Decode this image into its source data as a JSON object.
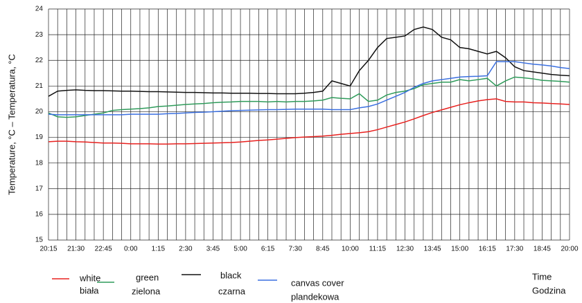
{
  "chart_data": {
    "type": "line",
    "ylabel": "Temperature, °C – Temperatura, °C",
    "xlabel": "Time",
    "xlabel_pl": "Godzina",
    "categories": [
      "20:15",
      null,
      null,
      "21:30",
      null,
      null,
      "22:45",
      null,
      null,
      "0:00",
      null,
      null,
      "1:15",
      null,
      null,
      "2:30",
      null,
      null,
      "3:45",
      null,
      null,
      "5:00",
      null,
      null,
      "6:15",
      null,
      null,
      "7:30",
      null,
      null,
      "8:45",
      null,
      null,
      "10:00",
      null,
      null,
      "11:15",
      null,
      null,
      "12:30",
      null,
      null,
      "13:45",
      null,
      null,
      "15:00",
      null,
      null,
      "16:15",
      null,
      null,
      "17:30",
      null,
      null,
      "18:45",
      null,
      null,
      "20:00"
    ],
    "ylim": [
      15,
      24
    ],
    "yticks": [
      15,
      16,
      17,
      18,
      19,
      20,
      21,
      22,
      23,
      24
    ],
    "grid": true,
    "series": [
      {
        "name": "white",
        "name_pl": "biała",
        "color": "#e8201e",
        "values": [
          18.83,
          18.85,
          18.85,
          18.83,
          18.82,
          18.8,
          18.78,
          18.78,
          18.77,
          18.75,
          18.75,
          18.75,
          18.74,
          18.74,
          18.75,
          18.75,
          18.76,
          18.77,
          18.78,
          18.79,
          18.8,
          18.82,
          18.85,
          18.88,
          18.9,
          18.93,
          18.96,
          18.99,
          19.01,
          19.03,
          19.05,
          19.08,
          19.12,
          19.15,
          19.18,
          19.22,
          19.3,
          19.4,
          19.5,
          19.6,
          19.72,
          19.85,
          19.97,
          20.07,
          20.17,
          20.27,
          20.35,
          20.42,
          20.47,
          20.5,
          20.4,
          20.38,
          20.38,
          20.35,
          20.34,
          20.32,
          20.3,
          20.28
        ]
      },
      {
        "name": "green",
        "name_pl": "zielona",
        "color": "#2e9b5a",
        "values": [
          19.95,
          19.8,
          19.78,
          19.8,
          19.85,
          19.9,
          19.95,
          20.05,
          20.08,
          20.1,
          20.12,
          20.15,
          20.2,
          20.22,
          20.25,
          20.28,
          20.3,
          20.32,
          20.35,
          20.37,
          20.38,
          20.4,
          20.4,
          20.4,
          20.38,
          20.4,
          20.38,
          20.4,
          20.4,
          20.42,
          20.45,
          20.55,
          20.52,
          20.5,
          20.7,
          20.4,
          20.45,
          20.65,
          20.75,
          20.8,
          20.9,
          21.05,
          21.1,
          21.15,
          21.15,
          21.25,
          21.2,
          21.25,
          21.3,
          21.0,
          21.2,
          21.35,
          21.32,
          21.28,
          21.22,
          21.2,
          21.18,
          21.15
        ]
      },
      {
        "name": "black",
        "name_pl": "czarna",
        "color": "#111111",
        "values": [
          20.6,
          20.8,
          20.83,
          20.85,
          20.83,
          20.82,
          20.82,
          20.81,
          20.8,
          20.8,
          20.79,
          20.78,
          20.78,
          20.77,
          20.76,
          20.75,
          20.75,
          20.74,
          20.73,
          20.73,
          20.72,
          20.72,
          20.72,
          20.71,
          20.71,
          20.7,
          20.7,
          20.7,
          20.72,
          20.75,
          20.8,
          21.2,
          21.1,
          21.0,
          21.6,
          22.0,
          22.5,
          22.85,
          22.9,
          22.95,
          23.2,
          23.3,
          23.2,
          22.9,
          22.8,
          22.5,
          22.45,
          22.35,
          22.25,
          22.35,
          22.1,
          21.75,
          21.6,
          21.55,
          21.5,
          21.45,
          21.42,
          21.4
        ]
      },
      {
        "name": "canvas cover",
        "name_pl": "plandekowa",
        "color": "#3a6fe0",
        "values": [
          19.9,
          19.88,
          19.88,
          19.88,
          19.88,
          19.88,
          19.88,
          19.88,
          19.88,
          19.9,
          19.9,
          19.9,
          19.9,
          19.92,
          19.93,
          19.95,
          19.97,
          19.98,
          20.0,
          20.02,
          20.04,
          20.05,
          20.06,
          20.07,
          20.08,
          20.08,
          20.09,
          20.1,
          20.1,
          20.1,
          20.1,
          20.08,
          20.08,
          20.08,
          20.15,
          20.2,
          20.3,
          20.45,
          20.6,
          20.75,
          20.95,
          21.1,
          21.2,
          21.25,
          21.3,
          21.35,
          21.37,
          21.38,
          21.4,
          21.95,
          21.95,
          21.95,
          21.9,
          21.85,
          21.82,
          21.78,
          21.72,
          21.68
        ]
      }
    ]
  }
}
